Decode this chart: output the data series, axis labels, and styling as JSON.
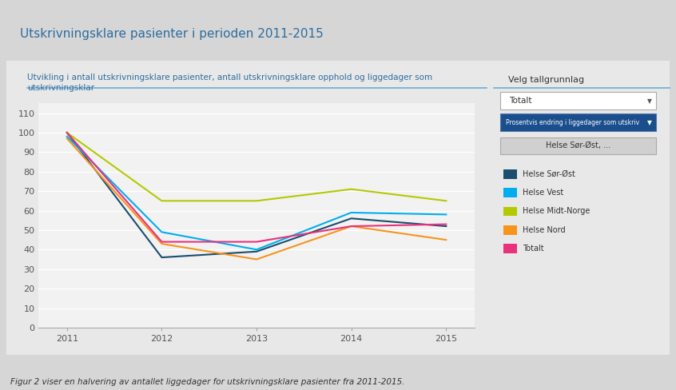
{
  "title": "Utskrivningsklare pasienter i perioden 2011-2015",
  "subtitle": "Utvikling i antall utskrivningsklare pasienter, antall utskrivningsklare opphold og liggedager som\nutskrivningsklar",
  "caption": "Figur 2 viser en halvering av antallet liggedager for utskrivningsklare pasienter fra 2011-2015.",
  "years": [
    2011,
    2012,
    2013,
    2014,
    2015
  ],
  "series": [
    {
      "name": "Helse Sør-Øst",
      "color": "#1a4e6e",
      "values": [
        100,
        36,
        39,
        56,
        52
      ]
    },
    {
      "name": "Helse Vest",
      "color": "#00aeef",
      "values": [
        98,
        49,
        40,
        59,
        58
      ]
    },
    {
      "name": "Helse Midt-Norge",
      "color": "#b5c900",
      "values": [
        100,
        65,
        65,
        71,
        65
      ]
    },
    {
      "name": "Helse Nord",
      "color": "#f7941d",
      "values": [
        97,
        43,
        35,
        52,
        45
      ]
    },
    {
      "name": "Totalt",
      "color": "#e8327c",
      "values": [
        100,
        44,
        44,
        52,
        53
      ]
    }
  ],
  "ylim": [
    0,
    115
  ],
  "yticks": [
    0,
    10,
    20,
    30,
    40,
    50,
    60,
    70,
    80,
    90,
    100,
    110
  ],
  "xlim": [
    2010.7,
    2015.3
  ],
  "bg_outer": "#d6d6d6",
  "bg_inner": "#e8e8e8",
  "bg_chart": "#f2f2f2",
  "title_color": "#2e6c9e",
  "subtitle_color": "#2e6c9e",
  "separator_color": "#6baed6",
  "dropdown1_text": "Totalt",
  "dropdown2_text": "Prosentvis endring i liggedager som utskriv",
  "button_text": "Helse Sør-Øst, ...",
  "velg_text": "Velg tallgrunnlag"
}
